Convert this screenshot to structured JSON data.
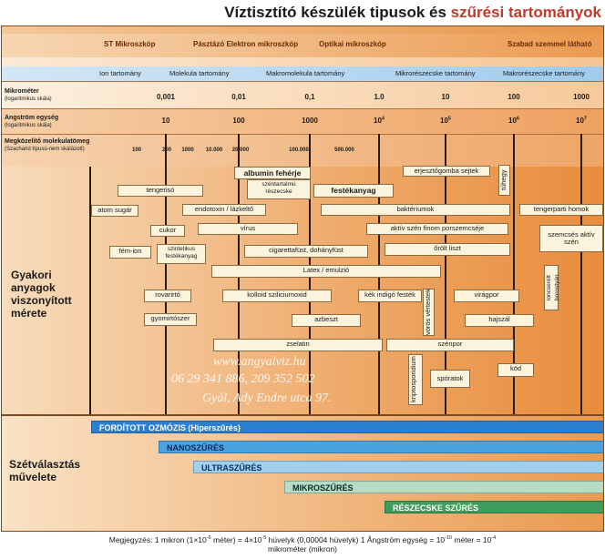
{
  "title": {
    "part1": "Víztisztító készülék tipusok és ",
    "part2": "szűrési tartományok"
  },
  "scopes": [
    "ST Mikroszkóp",
    "Pásztázó Elektron mikroszkóp",
    "Optikai mikroszkóp",
    "Szabad szemmel látható"
  ],
  "ranges": [
    "Ion tartomány",
    "Molekula tartomány",
    "Makromolekula tartomány",
    "Mikrorészecske tartomány",
    "Makrorészecske tartomány"
  ],
  "rows": {
    "micrometer": {
      "label": "Mikrométer",
      "sub": "(logaritmikus skála)",
      "ticks": [
        "0,001",
        "0,01",
        "0,1",
        "1.0",
        "10",
        "100",
        "1000"
      ]
    },
    "angstrom": {
      "label": "Angström egység",
      "sub": "(logaritmikus skála)",
      "ticks": [
        "10",
        "100",
        "1000",
        "10",
        "10",
        "10",
        "10"
      ],
      "exps": [
        "",
        "",
        "",
        "4",
        "5",
        "6",
        "7"
      ]
    },
    "molweight": {
      "label": "Megközelítő molekulatömeg",
      "sub": "(Szacharid típusú-nem skálázott)",
      "ticks": [
        "100",
        "200",
        "1000",
        "10.000",
        "20.000",
        "100.000",
        "500.000"
      ]
    }
  },
  "main_label": "Gyakori anyagok viszonyított mérete",
  "sep_label": "Szétválasztás művelete",
  "items": {
    "albumin": "albumin fehérje",
    "erjeszto": "erjesztőgomba sejtek",
    "tuhegy": "tűhegy",
    "szentartalmu": "széntartalmú részecske",
    "tengeriso": "tengerisó",
    "festekanyag": "festékanyag",
    "atomsugar": "atom sugár",
    "endotoxin": "endotoxin / lázkeltő",
    "bakteriumok": "baktériumok",
    "tengerparti": "tengerparti homok",
    "cukor": "cukor",
    "virus": "vírus",
    "aktivszen_finom": "aktív szén finom porszemcséje",
    "femion": "fém-ion",
    "szintetikus": "szintetikus festékanyag",
    "cigaretta": "cigarettafüst, dohányfüst",
    "orolt": "őrölt liszt",
    "szemcses": "szemcsés aktív szén",
    "latex": "Latex / emulzió",
    "rovarirto": "rovarirtó",
    "kolloid": "kolloid sziliciumoxid",
    "kekindigo": "kék indigó festék",
    "virogpor": "virágpor",
    "ioncsere": "ioncserélt borostyán",
    "voros": "vörös vértestek",
    "gyomirto": "gyomirtószer",
    "azbeszt": "azbeszt",
    "hajszal": "hajszál",
    "zselatin": "zselatin",
    "szenpor": "szénpor",
    "kripto": "kriptosporidium",
    "sporatok": "spóratok",
    "kod": "köd"
  },
  "watermark": [
    "www.angyalviz.hu",
    "06 29 341 886,      209 352 502",
    "Gyál, Ady Endre utca 97."
  ],
  "separations": [
    "FORDÍTOTT OZMÓZIS (Hiperszűrés)",
    "NANOSZŰRÉS",
    "ULTRASZŰRÉS",
    "MIKROSZŰRÉS",
    "RÉSZECSKE SZŰRÉS"
  ],
  "colors": {
    "ro": "#2a7fd0",
    "nano": "#4aa3e0",
    "ultra": "#9fd0ee",
    "micro": "#b6dcc4",
    "particle": "#3e9c5c"
  },
  "note": {
    "line1": "Megjegyzés: 1 mikron (1×10",
    "e1": "-6",
    "p2": " méter) = 4×10",
    "e2": "-5",
    "p3": " hüvelyk (0,00004 hüvelyk) 1 Ångström egység = 10",
    "e3": "-10",
    "p4": " méter = 10",
    "e4": "-4",
    "line2": "mikrométer (mikron)"
  }
}
